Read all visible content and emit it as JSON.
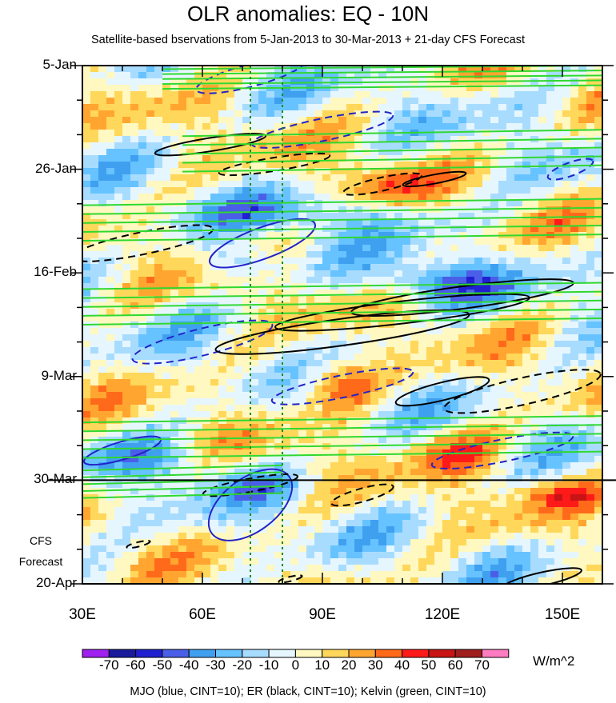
{
  "chart_data": {
    "type": "heatmap",
    "title": "OLR anomalies: EQ - 10N",
    "subtitle": "Satellite-based bservations from 5-Jan-2013 to 30-Mar-2013 + 21-day CFS Forecast",
    "x_ticks": [
      "30E",
      "60E",
      "90E",
      "120E",
      "150E"
    ],
    "x_tick_values": [
      30,
      60,
      90,
      120,
      150
    ],
    "xlim": [
      30,
      160
    ],
    "y_ticks": [
      "5-Jan",
      "26-Jan",
      "16-Feb",
      "9-Mar",
      "30-Mar",
      "20-Apr"
    ],
    "y_tick_days": [
      0,
      21,
      42,
      63,
      84,
      105
    ],
    "ylim_days": [
      0,
      105
    ],
    "forecast_label": [
      "CFS",
      "Forecast"
    ],
    "forecast_start": "30-Mar",
    "reference_longitudes": [
      72,
      80
    ],
    "colorbar": {
      "units": "W/m^2",
      "levels": [
        -70,
        -60,
        -50,
        -40,
        -30,
        -20,
        -10,
        0,
        10,
        20,
        30,
        40,
        50,
        60,
        70
      ],
      "labels": [
        "-70",
        "-60",
        "-50",
        "-40",
        "-30",
        "-20",
        "-10",
        "0",
        "10",
        "20",
        "30",
        "40",
        "50",
        "60",
        "70"
      ],
      "colors": [
        "#a020f0",
        "#1a1a9c",
        "#2020d0",
        "#4a5ee8",
        "#3fa0f0",
        "#66c3ff",
        "#a8dcff",
        "#e6f6ff",
        "#fff8c0",
        "#ffd75a",
        "#ffa530",
        "#ff6a1a",
        "#ff1a1a",
        "#c81414",
        "#a01e1e",
        "#ff7cc0"
      ]
    },
    "contour_series": [
      {
        "name": "MJO",
        "color": "#2323c8",
        "ellipses": [
          {
            "lon": 72,
            "day": 2,
            "dlon": 14,
            "dday": 5,
            "sign": -1
          },
          {
            "lon": 90,
            "day": 13,
            "dlon": 18,
            "dday": 5,
            "sign": -1
          },
          {
            "lon": 75,
            "day": 36,
            "dlon": 14,
            "dday": 7,
            "sign": 1
          },
          {
            "lon": 60,
            "day": 56,
            "dlon": 18,
            "dday": 6,
            "sign": -1
          },
          {
            "lon": 95,
            "day": 65,
            "dlon": 18,
            "dday": 5,
            "sign": -1
          },
          {
            "lon": 40,
            "day": 78,
            "dlon": 10,
            "dday": 4,
            "sign": 1
          },
          {
            "lon": 72,
            "day": 89,
            "dlon": 12,
            "dday": 12,
            "sign": 1
          },
          {
            "lon": 152,
            "day": 21,
            "dlon": 6,
            "dday": 3,
            "sign": -1
          },
          {
            "lon": 135,
            "day": 78,
            "dlon": 18,
            "dday": 5,
            "sign": -1
          }
        ]
      },
      {
        "name": "ER",
        "color": "#000000",
        "ellipses": [
          {
            "lon": 62,
            "day": 16,
            "dlon": 14,
            "dday": 3,
            "sign": 1
          },
          {
            "lon": 78,
            "day": 20,
            "dlon": 14,
            "dday": 3,
            "sign": -1
          },
          {
            "lon": 105,
            "day": 24,
            "dlon": 10,
            "dday": 3,
            "sign": -1
          },
          {
            "lon": 118,
            "day": 23,
            "dlon": 8,
            "dday": 2,
            "sign": 1
          },
          {
            "lon": 45,
            "day": 36,
            "dlon": 18,
            "dday": 5,
            "sign": -1
          },
          {
            "lon": 95,
            "day": 54,
            "dlon": 32,
            "dday": 6,
            "sign": 1
          },
          {
            "lon": 110,
            "day": 50,
            "dlon": 32,
            "dday": 5,
            "sign": 1
          },
          {
            "lon": 125,
            "day": 47,
            "dlon": 28,
            "dday": 5,
            "sign": 1
          },
          {
            "lon": 120,
            "day": 66,
            "dlon": 12,
            "dday": 4,
            "sign": 1
          },
          {
            "lon": 140,
            "day": 66,
            "dlon": 20,
            "dday": 6,
            "sign": -1
          },
          {
            "lon": 72,
            "day": 85,
            "dlon": 12,
            "dday": 3,
            "sign": -1
          },
          {
            "lon": 100,
            "day": 87,
            "dlon": 8,
            "dday": 3,
            "sign": -1
          },
          {
            "lon": 145,
            "day": 104,
            "dlon": 10,
            "dday": 3,
            "sign": 1
          },
          {
            "lon": 44,
            "day": 97,
            "dlon": 3,
            "dday": 1,
            "sign": -1
          },
          {
            "lon": 82,
            "day": 104,
            "dlon": 3,
            "dday": 1,
            "sign": -1
          }
        ]
      },
      {
        "name": "Kelvin",
        "color": "#30d830",
        "bands": [
          {
            "lon1": 50,
            "lon2": 160,
            "day1": 0,
            "day2": 5
          },
          {
            "lon1": 55,
            "lon2": 160,
            "day1": 13,
            "day2": 22
          },
          {
            "lon1": 30,
            "lon2": 160,
            "day1": 27,
            "day2": 36
          },
          {
            "lon1": 30,
            "lon2": 160,
            "day1": 44,
            "day2": 53
          },
          {
            "lon1": 30,
            "lon2": 160,
            "day1": 71,
            "day2": 80
          },
          {
            "lon1": 30,
            "lon2": 80,
            "day1": 81,
            "day2": 88
          }
        ]
      }
    ],
    "footer": "MJO (blue, CINT=10); ER (black, CINT=10); Kelvin (green, CINT=10)"
  }
}
